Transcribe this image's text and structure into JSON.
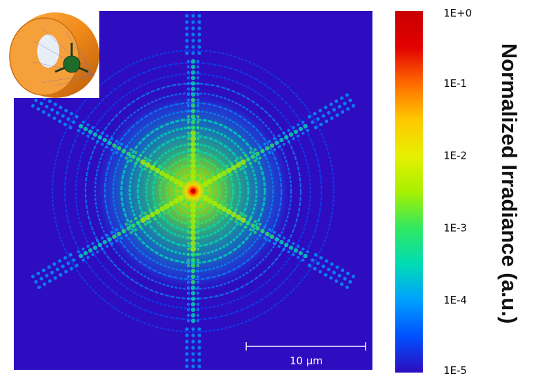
{
  "chart_data": {
    "type": "heatmap",
    "title": "",
    "colorbar": {
      "label": "Normalized Irradiance (a.u.)",
      "scale": "log",
      "range": [
        1e-05,
        1
      ],
      "ticks": [
        "1E+0",
        "1E-1",
        "1E-2",
        "1E-3",
        "1E-4",
        "1E-5"
      ],
      "tick_values": [
        1,
        0.1,
        0.01,
        0.001,
        0.0001,
        1e-05
      ],
      "colormap": "jet",
      "colors": [
        "#2d0dbf",
        "#0050ff",
        "#00a0ff",
        "#00dcb4",
        "#30e860",
        "#a8f000",
        "#e6f000",
        "#ffc800",
        "#ff6a00",
        "#e30000",
        "#c80000"
      ]
    },
    "scale_bar": {
      "label": "10 μm",
      "length_um": 10
    },
    "pattern": {
      "description_symmetry": 6,
      "background_color": "#2d0dbf",
      "center_peak_value": 1
    },
    "inset": {
      "content": "3D model of telescope with hexagonal obstruction"
    }
  }
}
